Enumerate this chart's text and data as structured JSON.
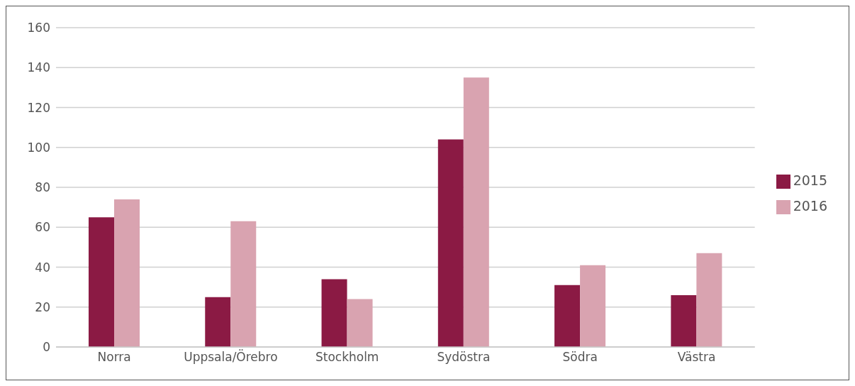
{
  "chart_data": {
    "type": "bar",
    "categories": [
      "Norra",
      "Uppsala/Örebro",
      "Stockholm",
      "Sydöstra",
      "Södra",
      "Västra"
    ],
    "series": [
      {
        "name": "2015",
        "color": "#8b1a44",
        "values": [
          65,
          25,
          34,
          104,
          31,
          26
        ]
      },
      {
        "name": "2016",
        "color": "#d9a3b0",
        "values": [
          74,
          63,
          24,
          135,
          41,
          47
        ]
      }
    ],
    "ylim": [
      0,
      160
    ],
    "yticks": [
      0,
      20,
      40,
      60,
      80,
      100,
      120,
      140,
      160
    ],
    "grid": "y",
    "legend": "right"
  }
}
